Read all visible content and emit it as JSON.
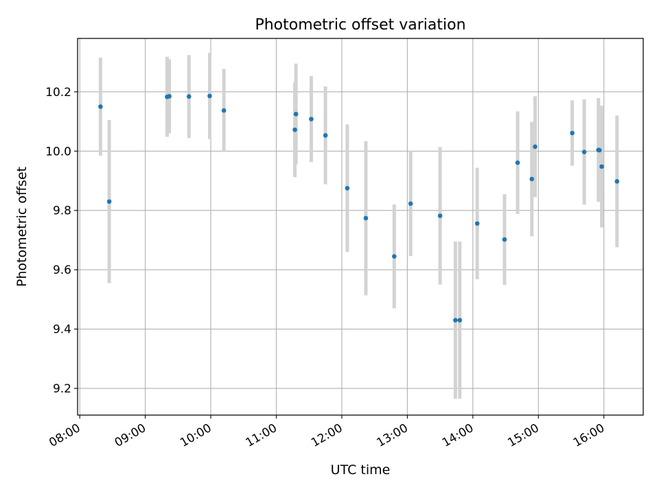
{
  "chart_data": {
    "type": "scatter",
    "title": "Photometric offset variation",
    "xlabel": "UTC time",
    "ylabel": "Photometric offset",
    "x_axis_kind": "time (HH:MM)",
    "xlim": [
      "07:58",
      "16:36"
    ],
    "ylim": [
      9.11,
      10.38
    ],
    "x_ticks": [
      "08:00",
      "09:00",
      "10:00",
      "11:00",
      "12:00",
      "13:00",
      "14:00",
      "15:00",
      "16:00"
    ],
    "y_ticks": [
      9.2,
      9.4,
      9.6,
      9.8,
      10.0,
      10.2
    ],
    "grid": true,
    "legend": "none",
    "point_color": "#1f77b4",
    "errorbar_color": "#d3d3d3",
    "series": [
      {
        "points": [
          {
            "x": "08:19",
            "y": 10.15,
            "err": 0.165
          },
          {
            "x": "08:27",
            "y": 9.83,
            "err": 0.275
          },
          {
            "x": "09:20",
            "y": 10.183,
            "err": 0.135
          },
          {
            "x": "09:22",
            "y": 10.185,
            "err": 0.125
          },
          {
            "x": "09:40",
            "y": 10.184,
            "err": 0.14
          },
          {
            "x": "09:59",
            "y": 10.186,
            "err": 0.145
          },
          {
            "x": "10:12",
            "y": 10.137,
            "err": 0.14
          },
          {
            "x": "11:17",
            "y": 10.072,
            "err": 0.16
          },
          {
            "x": "11:18",
            "y": 10.125,
            "err": 0.17
          },
          {
            "x": "11:32",
            "y": 10.108,
            "err": 0.145
          },
          {
            "x": "11:45",
            "y": 10.053,
            "err": 0.165
          },
          {
            "x": "12:05",
            "y": 9.875,
            "err": 0.215
          },
          {
            "x": "12:22",
            "y": 9.774,
            "err": 0.26
          },
          {
            "x": "12:48",
            "y": 9.645,
            "err": 0.175
          },
          {
            "x": "13:03",
            "y": 9.823,
            "err": 0.177
          },
          {
            "x": "13:30",
            "y": 9.782,
            "err": 0.232
          },
          {
            "x": "13:44",
            "y": 9.43,
            "err": 0.265
          },
          {
            "x": "13:48",
            "y": 9.43,
            "err": 0.265
          },
          {
            "x": "14:04",
            "y": 9.756,
            "err": 0.188
          },
          {
            "x": "14:29",
            "y": 9.702,
            "err": 0.153
          },
          {
            "x": "14:41",
            "y": 9.961,
            "err": 0.173
          },
          {
            "x": "14:54",
            "y": 9.906,
            "err": 0.193
          },
          {
            "x": "14:57",
            "y": 10.015,
            "err": 0.17
          },
          {
            "x": "15:31",
            "y": 10.061,
            "err": 0.11
          },
          {
            "x": "15:42",
            "y": 9.997,
            "err": 0.177
          },
          {
            "x": "15:55",
            "y": 10.004,
            "err": 0.175
          },
          {
            "x": "15:56",
            "y": 10.003,
            "err": 0.15
          },
          {
            "x": "15:58",
            "y": 9.948,
            "err": 0.205
          },
          {
            "x": "16:12",
            "y": 9.898,
            "err": 0.222
          }
        ]
      }
    ]
  }
}
